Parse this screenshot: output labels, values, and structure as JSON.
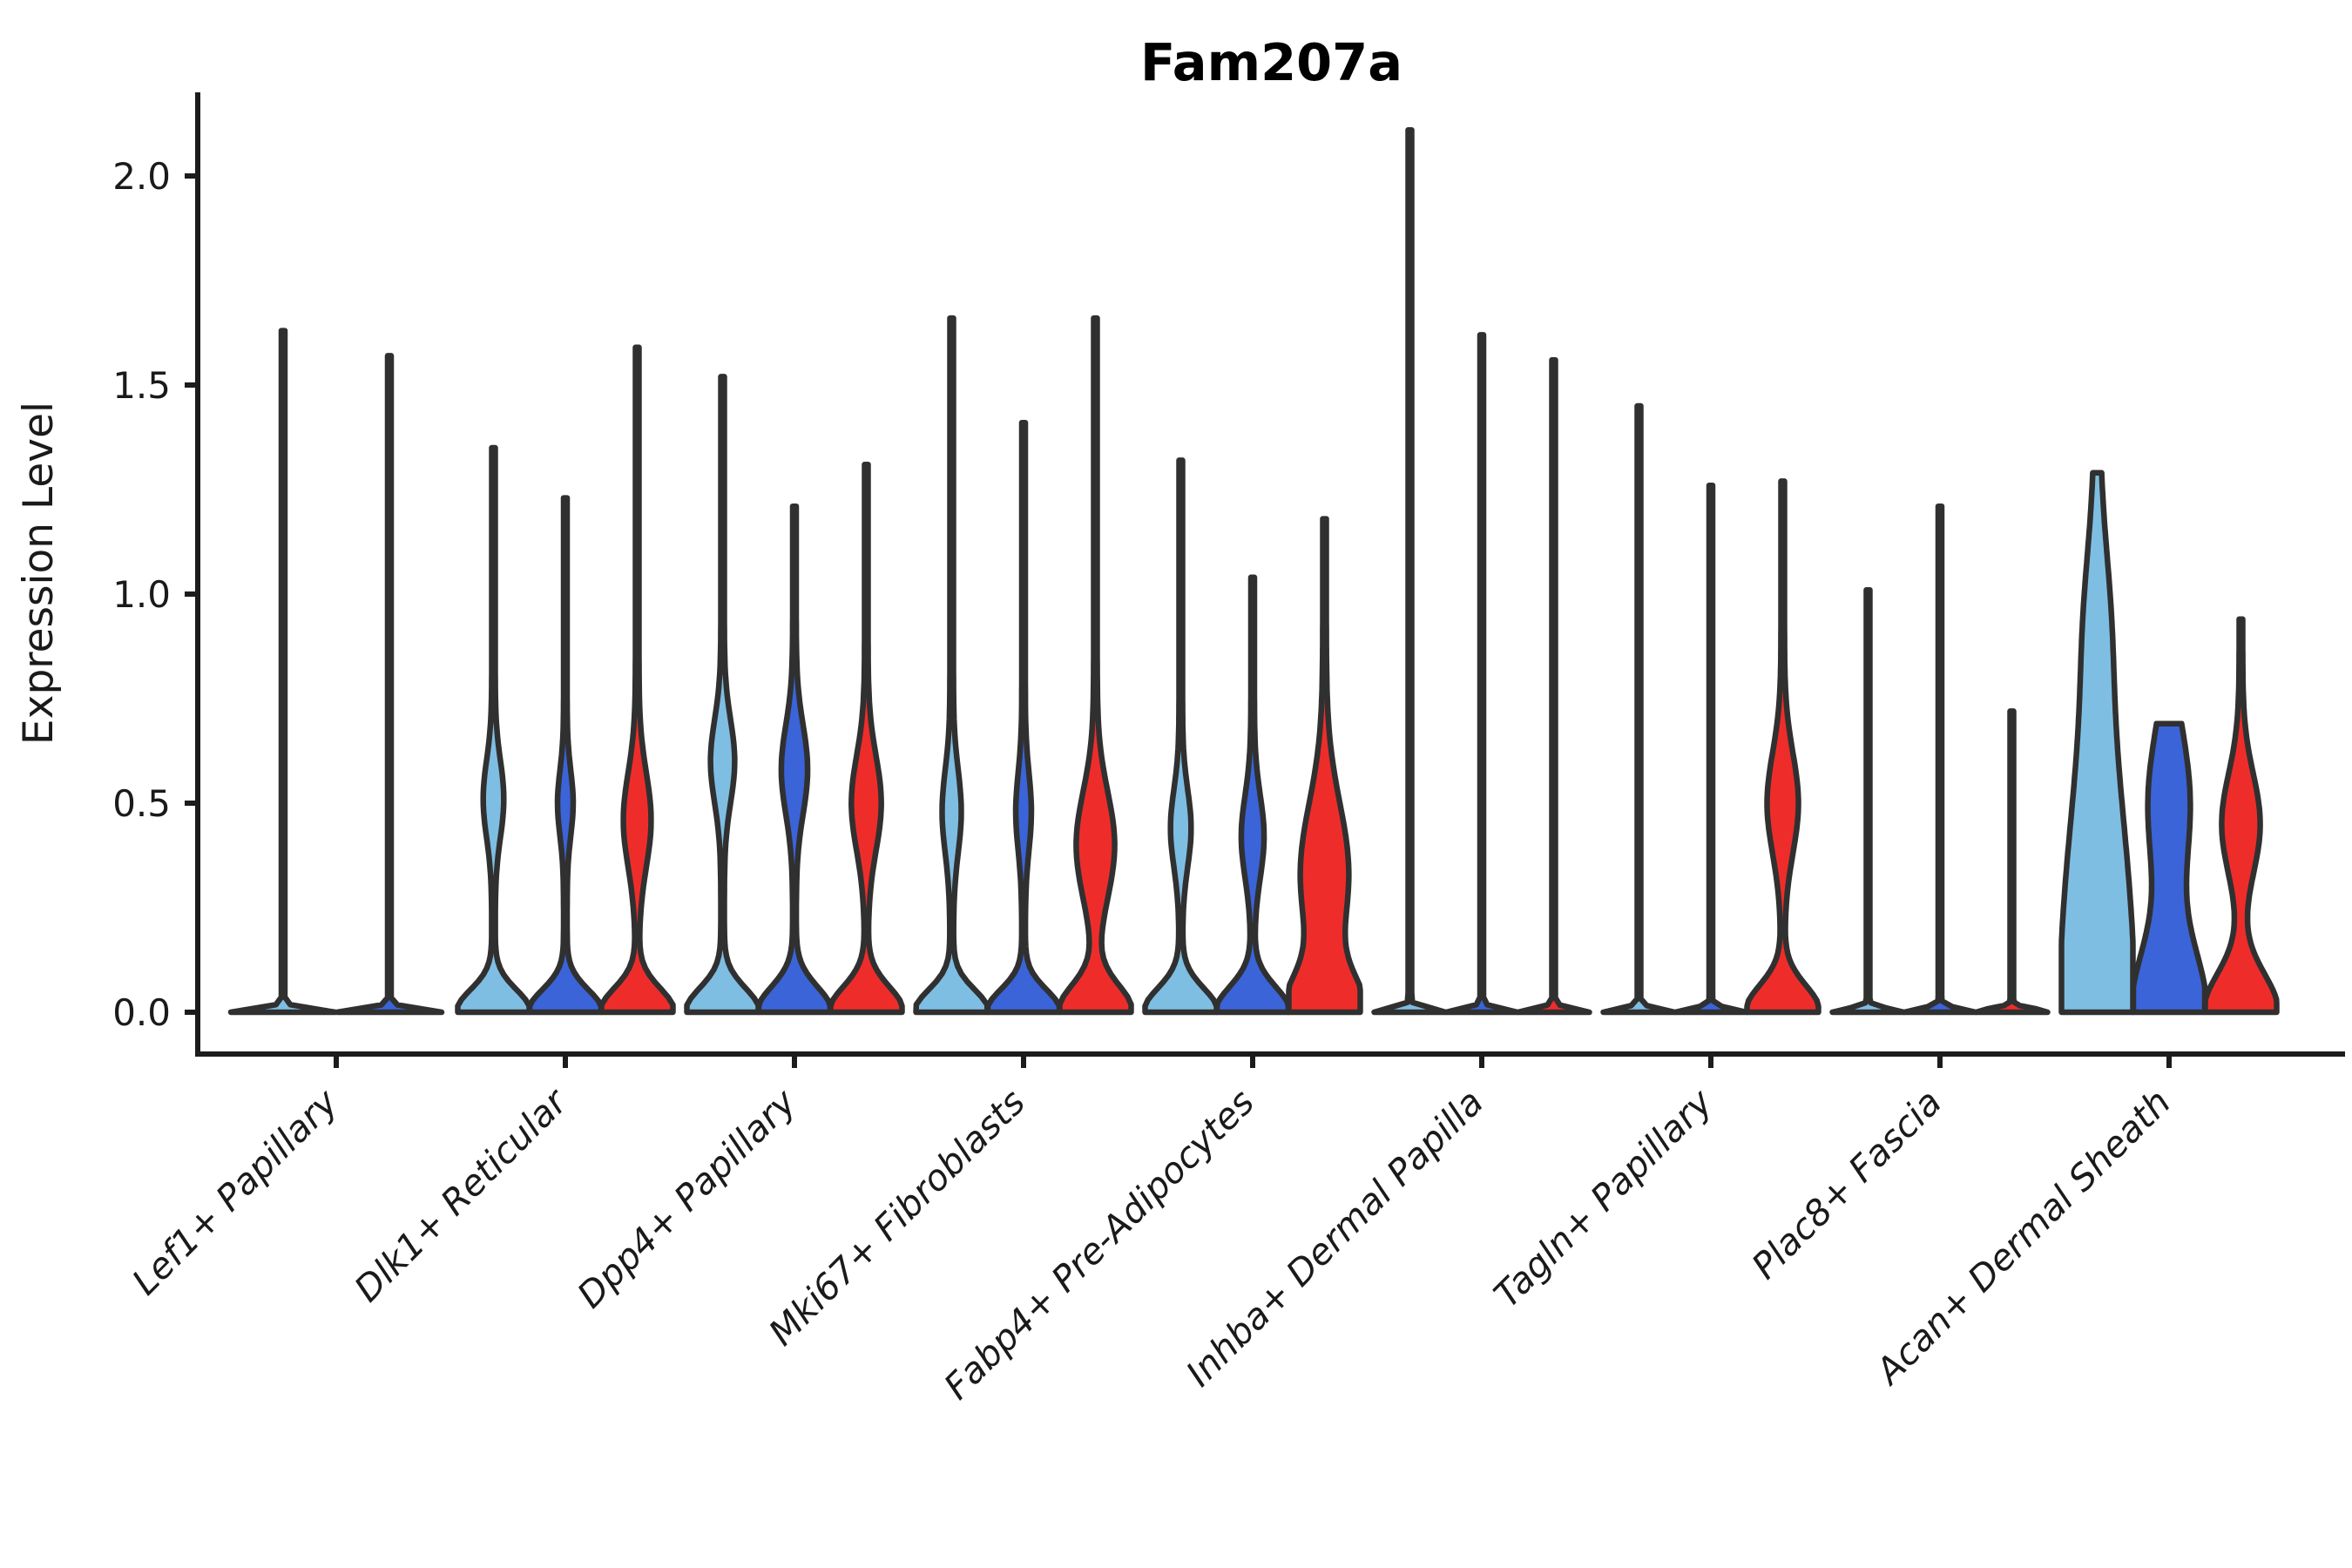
{
  "chart_data": {
    "type": "violin",
    "title": "Fam207a",
    "xlabel": "",
    "ylabel": "Expression Level",
    "ylim": [
      -0.1,
      2.2
    ],
    "grid": false,
    "legend": "none",
    "yticks": [
      {
        "value": 0.0,
        "label": "0.0"
      },
      {
        "value": 0.5,
        "label": "0.5"
      },
      {
        "value": 1.0,
        "label": "1.0"
      },
      {
        "value": 1.5,
        "label": "1.5"
      },
      {
        "value": 2.0,
        "label": "2.0"
      }
    ],
    "palette": {
      "light_blue": "#7FBEE3",
      "dark_blue": "#3A64D8",
      "red": "#EE2D2B",
      "outline": "#303030",
      "axis": "#1c1c1c"
    },
    "categories": [
      "Lef1+ Papillary",
      "Dlk1+ Reticular",
      "Dpp4+ Papillary",
      "Mki67+ Fibroblasts",
      "Fabp4+ Pre-Adipocytes",
      "Inhba+ Dermal Papilla",
      "Tagln+ Papillary",
      "Plac8+ Fascia",
      "Acan+ Dermal Sheath"
    ],
    "groups": [
      {
        "label": "Lef1+ Papillary",
        "violins": [
          {
            "color": "light_blue",
            "max": 1.63,
            "profile": [
              [
                1,
                0,
                0.012
              ]
            ]
          },
          {
            "color": "dark_blue",
            "max": 1.57,
            "profile": [
              [
                1,
                0,
                0.012
              ]
            ]
          }
        ]
      },
      {
        "label": "Dlk1+ Reticular",
        "violins": [
          {
            "color": "light_blue",
            "max": 1.35,
            "profile": [
              [
                1,
                0,
                0.075
              ],
              [
                0.24,
                0.51,
                0.13
              ]
            ]
          },
          {
            "color": "dark_blue",
            "max": 1.23,
            "profile": [
              [
                1,
                0,
                0.075
              ],
              [
                0.17,
                0.5,
                0.11
              ]
            ]
          },
          {
            "color": "red",
            "max": 1.59,
            "profile": [
              [
                1,
                0,
                0.08
              ],
              [
                0.34,
                0.46,
                0.16
              ]
            ]
          }
        ]
      },
      {
        "label": "Dpp4+ Papillary",
        "violins": [
          {
            "color": "light_blue",
            "max": 1.52,
            "profile": [
              [
                1,
                0,
                0.08
              ],
              [
                0.29,
                0.6,
                0.14
              ]
            ]
          },
          {
            "color": "dark_blue",
            "max": 1.21,
            "profile": [
              [
                1,
                0,
                0.085
              ],
              [
                0.32,
                0.58,
                0.15
              ]
            ]
          },
          {
            "color": "red",
            "max": 1.31,
            "profile": [
              [
                1,
                0,
                0.085
              ],
              [
                0.37,
                0.5,
                0.16
              ]
            ]
          }
        ]
      },
      {
        "label": "Mki67+ Fibroblasts",
        "violins": [
          {
            "color": "light_blue",
            "max": 1.66,
            "profile": [
              [
                1,
                0,
                0.075
              ],
              [
                0.22,
                0.48,
                0.14
              ]
            ]
          },
          {
            "color": "dark_blue",
            "max": 1.41,
            "profile": [
              [
                1,
                0,
                0.075
              ],
              [
                0.17,
                0.48,
                0.13
              ]
            ]
          },
          {
            "color": "red",
            "max": 1.66,
            "profile": [
              [
                1,
                0,
                0.09
              ],
              [
                0.49,
                0.4,
                0.18
              ]
            ]
          }
        ]
      },
      {
        "label": "Fabp4+ Pre-Adipocytes",
        "violins": [
          {
            "color": "light_blue",
            "max": 1.32,
            "profile": [
              [
                1,
                0,
                0.08
              ],
              [
                0.24,
                0.44,
                0.13
              ]
            ]
          },
          {
            "color": "dark_blue",
            "max": 1.04,
            "profile": [
              [
                1,
                0,
                0.085
              ],
              [
                0.27,
                0.42,
                0.14
              ]
            ]
          },
          {
            "color": "red",
            "max": 1.18,
            "profile": [
              [
                1,
                0,
                0.12
              ],
              [
                0.63,
                0.33,
                0.24
              ]
            ]
          }
        ]
      },
      {
        "label": "Inhba+ Dermal Papilla",
        "violins": [
          {
            "color": "light_blue",
            "max": 2.11,
            "profile": [
              [
                1,
                0,
                0.012
              ]
            ]
          },
          {
            "color": "dark_blue",
            "max": 1.62,
            "profile": [
              [
                1,
                0,
                0.012
              ]
            ]
          },
          {
            "color": "red",
            "max": 1.56,
            "profile": [
              [
                1,
                0,
                0.012
              ]
            ]
          }
        ]
      },
      {
        "label": "Tagln+ Papillary",
        "violins": [
          {
            "color": "light_blue",
            "max": 1.45,
            "profile": [
              [
                1,
                0,
                0.012
              ]
            ]
          },
          {
            "color": "dark_blue",
            "max": 1.26,
            "profile": [
              [
                1,
                0,
                0.012
              ]
            ]
          },
          {
            "color": "red",
            "max": 1.27,
            "profile": [
              [
                1,
                0,
                0.09
              ],
              [
                0.39,
                0.5,
                0.17
              ]
            ]
          }
        ]
      },
      {
        "label": "Plac8+ Fascia",
        "violins": [
          {
            "color": "light_blue",
            "max": 1.01,
            "profile": [
              [
                1,
                0,
                0.012
              ]
            ]
          },
          {
            "color": "dark_blue",
            "max": 1.21,
            "profile": [
              [
                1,
                0,
                0.012
              ]
            ]
          },
          {
            "color": "red",
            "max": 0.72,
            "profile": [
              [
                1,
                0,
                0.012
              ]
            ]
          }
        ]
      },
      {
        "label": "Acan+ Dermal Sheath",
        "violins": [
          {
            "color": "light_blue",
            "max": 1.29,
            "profile": [
              [
                1,
                0,
                0.75
              ],
              [
                0.15,
                0.95,
                0.25
              ]
            ]
          },
          {
            "color": "dark_blue",
            "max": 0.69,
            "profile": [
              [
                1,
                0,
                0.22
              ],
              [
                0.54,
                0.5,
                0.25
              ]
            ]
          },
          {
            "color": "red",
            "max": 0.94,
            "profile": [
              [
                1,
                0,
                0.13
              ],
              [
                0.49,
                0.45,
                0.17
              ]
            ]
          }
        ]
      }
    ]
  }
}
